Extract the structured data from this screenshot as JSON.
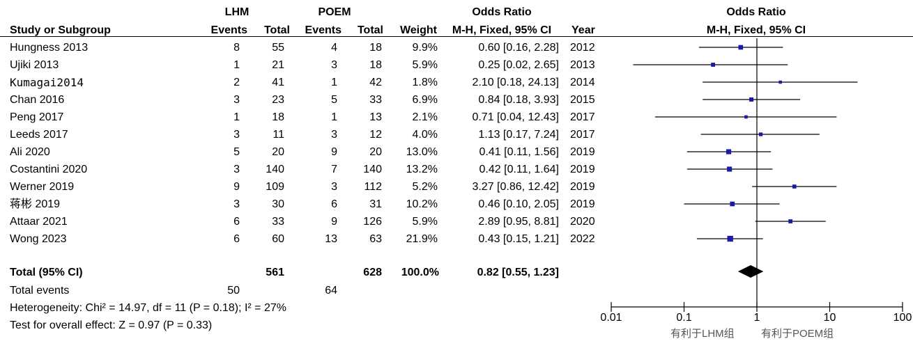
{
  "chart_data": {
    "type": "forest",
    "header": {
      "group1": "LHM",
      "group2": "POEM",
      "or_title": "Odds Ratio",
      "col_study": "Study or Subgroup",
      "col_events": "Events",
      "col_total": "Total",
      "col_weight": "Weight",
      "col_method": "M-H, Fixed, 95% CI",
      "col_year": "Year",
      "plot_title": "Odds Ratio",
      "plot_method": "M-H, Fixed, 95% CI"
    },
    "studies": [
      {
        "name": "Hungness 2013",
        "e1": "8",
        "t1": "55",
        "e2": "4",
        "t2": "18",
        "weight": "9.9%",
        "ci_text": "0.60 [0.16, 2.28]",
        "year": "2012",
        "or": 0.6,
        "lo": 0.16,
        "hi": 2.28,
        "w": 9.9
      },
      {
        "name": "Ujiki 2013",
        "e1": "1",
        "t1": "21",
        "e2": "3",
        "t2": "18",
        "weight": "5.9%",
        "ci_text": "0.25 [0.02, 2.65]",
        "year": "2013",
        "or": 0.25,
        "lo": 0.02,
        "hi": 2.65,
        "w": 5.9
      },
      {
        "name": "Kumagai2014",
        "e1": "2",
        "t1": "41",
        "e2": "1",
        "t2": "42",
        "weight": "1.8%",
        "ci_text": "2.10 [0.18, 24.13]",
        "year": "2014",
        "or": 2.1,
        "lo": 0.18,
        "hi": 24.13,
        "w": 1.8
      },
      {
        "name": "Chan 2016",
        "e1": "3",
        "t1": "23",
        "e2": "5",
        "t2": "33",
        "weight": "6.9%",
        "ci_text": "0.84 [0.18, 3.93]",
        "year": "2015",
        "or": 0.84,
        "lo": 0.18,
        "hi": 3.93,
        "w": 6.9
      },
      {
        "name": "Peng 2017",
        "e1": "1",
        "t1": "18",
        "e2": "1",
        "t2": "13",
        "weight": "2.1%",
        "ci_text": "0.71 [0.04, 12.43]",
        "year": "2017",
        "or": 0.71,
        "lo": 0.04,
        "hi": 12.43,
        "w": 2.1
      },
      {
        "name": "Leeds 2017",
        "e1": "3",
        "t1": "11",
        "e2": "3",
        "t2": "12",
        "weight": "4.0%",
        "ci_text": "1.13 [0.17, 7.24]",
        "year": "2017",
        "or": 1.13,
        "lo": 0.17,
        "hi": 7.24,
        "w": 4.0
      },
      {
        "name": "Ali 2020",
        "e1": "5",
        "t1": "20",
        "e2": "9",
        "t2": "20",
        "weight": "13.0%",
        "ci_text": "0.41 [0.11, 1.56]",
        "year": "2019",
        "or": 0.41,
        "lo": 0.11,
        "hi": 1.56,
        "w": 13.0
      },
      {
        "name": "Costantini 2020",
        "e1": "3",
        "t1": "140",
        "e2": "7",
        "t2": "140",
        "weight": "13.2%",
        "ci_text": "0.42 [0.11, 1.64]",
        "year": "2019",
        "or": 0.42,
        "lo": 0.11,
        "hi": 1.64,
        "w": 13.2
      },
      {
        "name": "Werner 2019",
        "e1": "9",
        "t1": "109",
        "e2": "3",
        "t2": "112",
        "weight": "5.2%",
        "ci_text": "3.27 [0.86, 12.42]",
        "year": "2019",
        "or": 3.27,
        "lo": 0.86,
        "hi": 12.42,
        "w": 5.2
      },
      {
        "name": "蒋彬 2019",
        "e1": "3",
        "t1": "30",
        "e2": "6",
        "t2": "31",
        "weight": "10.2%",
        "ci_text": "0.46 [0.10, 2.05]",
        "year": "2019",
        "or": 0.46,
        "lo": 0.1,
        "hi": 2.05,
        "w": 10.2
      },
      {
        "name": "Attaar 2021",
        "e1": "6",
        "t1": "33",
        "e2": "9",
        "t2": "126",
        "weight": "5.9%",
        "ci_text": "2.89 [0.95, 8.81]",
        "year": "2020",
        "or": 2.89,
        "lo": 0.95,
        "hi": 8.81,
        "w": 5.9
      },
      {
        "name": "Wong 2023",
        "e1": "6",
        "t1": "60",
        "e2": "13",
        "t2": "63",
        "weight": "21.9%",
        "ci_text": "0.43 [0.15, 1.21]",
        "year": "2022",
        "or": 0.43,
        "lo": 0.15,
        "hi": 1.21,
        "w": 21.9
      }
    ],
    "total": {
      "label": "Total (95% CI)",
      "t1": "561",
      "t2": "628",
      "weight": "100.0%",
      "ci_text": "0.82 [0.55, 1.23]",
      "or": 0.82,
      "lo": 0.55,
      "hi": 1.23
    },
    "total_events": {
      "label": "Total events",
      "e1": "50",
      "e2": "64"
    },
    "heterogeneity": "Heterogeneity: Chi² = 14.97, df = 11 (P = 0.18); I² = 27%",
    "overall_effect": "Test for overall effect: Z = 0.97 (P = 0.33)",
    "axis": {
      "scale": "log",
      "xlim": [
        0.01,
        100
      ],
      "ticks": [
        0.01,
        0.1,
        1,
        10,
        100
      ],
      "tick_labels": [
        "0.01",
        "0.1",
        "1",
        "10",
        "100"
      ],
      "favours_left": "有利于LHM组",
      "favours_right": "有利于POEM组"
    },
    "colors": {
      "marker": "#1a1aa6",
      "line": "#000000",
      "diamond": "#000000",
      "note": "#555555"
    }
  }
}
